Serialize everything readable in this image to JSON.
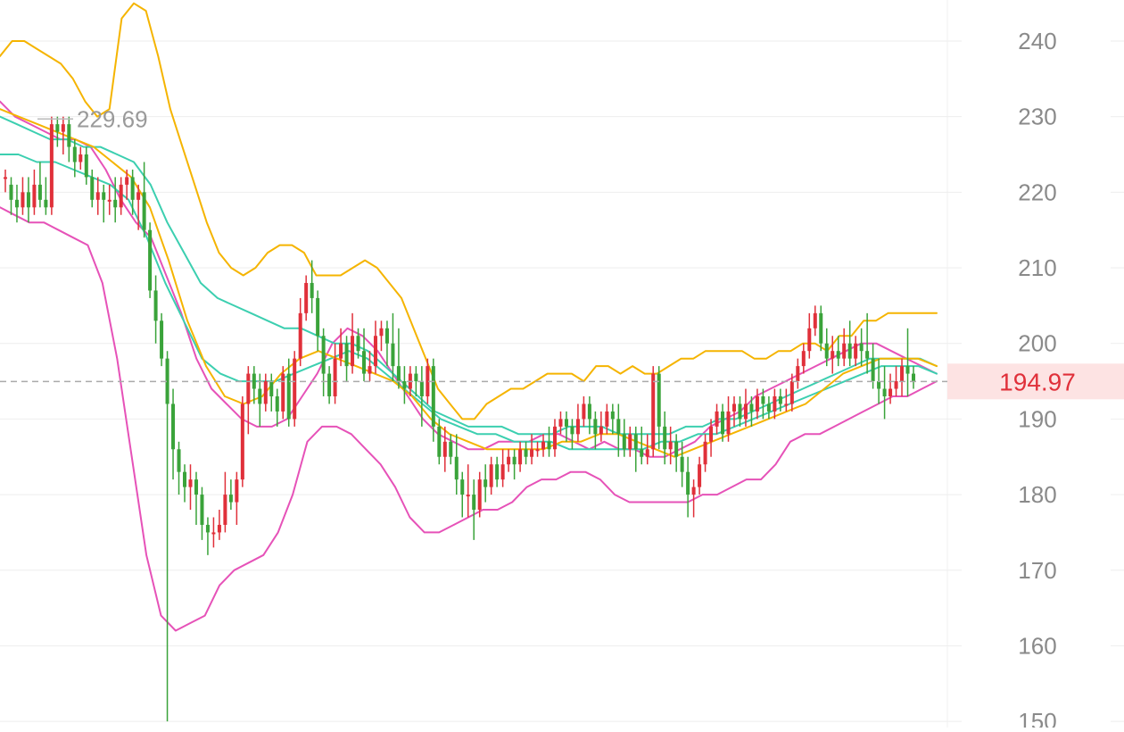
{
  "chart_data": {
    "type": "candlestick",
    "y_axis": {
      "ticks": [
        "240",
        "230",
        "220",
        "210",
        "200",
        "190",
        "180",
        "170",
        "160",
        "150"
      ],
      "range": [
        148,
        245
      ],
      "side": "right",
      "grid": true
    },
    "x_axis": {
      "labels": []
    },
    "current_price": {
      "value": 194.97,
      "label": "194.97"
    },
    "high_marker": {
      "value": 229.69,
      "label": "229.69"
    },
    "colors": {
      "up": "#e0303a",
      "down": "#3aa33a",
      "boll_outer": "#f5b400",
      "env": "#e652b8",
      "ma_teal": "#3ccfb0",
      "grid": "#eeeeee",
      "price_line": "#aaaaaa",
      "price_tag_bg": "#fde3e3",
      "price_tag_text": "#e0303a"
    },
    "candles": [
      [
        222,
        222,
        220,
        223
      ],
      [
        221,
        219,
        217,
        222
      ],
      [
        219,
        218,
        216,
        221
      ],
      [
        218,
        220,
        217,
        222
      ],
      [
        220,
        218,
        216,
        222
      ],
      [
        218,
        221,
        217,
        223
      ],
      [
        221,
        219,
        218,
        224
      ],
      [
        219,
        218,
        217,
        222
      ],
      [
        218,
        229,
        217,
        230
      ],
      [
        229,
        228,
        226,
        230
      ],
      [
        228,
        229,
        225,
        230
      ],
      [
        229,
        226,
        224,
        230
      ],
      [
        226,
        224,
        222,
        227
      ],
      [
        224,
        225,
        223,
        226
      ],
      [
        225,
        222,
        221,
        226
      ],
      [
        222,
        219,
        218,
        223
      ],
      [
        219,
        220,
        217,
        222
      ],
      [
        220,
        219,
        216,
        221
      ],
      [
        219,
        219,
        217,
        221
      ],
      [
        219,
        218,
        216,
        222
      ],
      [
        218,
        221,
        217,
        222
      ],
      [
        221,
        222,
        219,
        223
      ],
      [
        222,
        219,
        217,
        223
      ],
      [
        219,
        220,
        215,
        221
      ],
      [
        220,
        215,
        214,
        224
      ],
      [
        215,
        207,
        206,
        216
      ],
      [
        207,
        203,
        200,
        209
      ],
      [
        203,
        198,
        197,
        204
      ],
      [
        198,
        192,
        150,
        199
      ],
      [
        192,
        186,
        182,
        194
      ],
      [
        186,
        183,
        180,
        187
      ],
      [
        183,
        181,
        179,
        184
      ],
      [
        181,
        182,
        178,
        184
      ],
      [
        182,
        180,
        176,
        183
      ],
      [
        180,
        176,
        174,
        181
      ],
      [
        176,
        175,
        172,
        177
      ],
      [
        175,
        175,
        173,
        177
      ],
      [
        175,
        176,
        174,
        178
      ],
      [
        176,
        180,
        175,
        183
      ],
      [
        180,
        179,
        178,
        182
      ],
      [
        179,
        182,
        176,
        183
      ],
      [
        182,
        192,
        181,
        193
      ],
      [
        192,
        196,
        188,
        197
      ],
      [
        196,
        194,
        192,
        197
      ],
      [
        194,
        192,
        189,
        196
      ],
      [
        192,
        195,
        191,
        196
      ],
      [
        195,
        193,
        191,
        196
      ],
      [
        193,
        191,
        189,
        194
      ],
      [
        191,
        196,
        190,
        197
      ],
      [
        196,
        190,
        189,
        198
      ],
      [
        190,
        198,
        189,
        199
      ],
      [
        198,
        204,
        197,
        206
      ],
      [
        204,
        208,
        203,
        209
      ],
      [
        208,
        206,
        204,
        211
      ],
      [
        206,
        201,
        199,
        207
      ],
      [
        201,
        196,
        193,
        202
      ],
      [
        196,
        193,
        192,
        197
      ],
      [
        193,
        198,
        192,
        200
      ],
      [
        198,
        200,
        197,
        202
      ],
      [
        200,
        197,
        195,
        201
      ],
      [
        197,
        201,
        196,
        204
      ],
      [
        201,
        199,
        198,
        202
      ],
      [
        199,
        196,
        195,
        202
      ],
      [
        196,
        197,
        195,
        199
      ],
      [
        197,
        201,
        196,
        203
      ],
      [
        201,
        202,
        199,
        203
      ],
      [
        202,
        200,
        197,
        203
      ],
      [
        200,
        197,
        195,
        204
      ],
      [
        197,
        195,
        194,
        202
      ],
      [
        195,
        194,
        192,
        197
      ],
      [
        194,
        196,
        193,
        197
      ],
      [
        196,
        195,
        193,
        197
      ],
      [
        195,
        193,
        189,
        197
      ],
      [
        193,
        197,
        192,
        198
      ],
      [
        197,
        189,
        187,
        198
      ],
      [
        189,
        185,
        184,
        190
      ],
      [
        185,
        187,
        183,
        189
      ],
      [
        187,
        185,
        184,
        188
      ],
      [
        185,
        182,
        180,
        188
      ],
      [
        182,
        180,
        177,
        183
      ],
      [
        180,
        180,
        177,
        184
      ],
      [
        180,
        178,
        174,
        182
      ],
      [
        178,
        182,
        177,
        183
      ],
      [
        182,
        181,
        179,
        184
      ],
      [
        181,
        184,
        180,
        185
      ],
      [
        184,
        182,
        181,
        185
      ],
      [
        182,
        184,
        181,
        186
      ],
      [
        184,
        185,
        183,
        186
      ],
      [
        185,
        184,
        182,
        186
      ],
      [
        184,
        186,
        183,
        187
      ],
      [
        186,
        185,
        184,
        187
      ],
      [
        185,
        186,
        184,
        188
      ],
      [
        186,
        186,
        185,
        187
      ],
      [
        186,
        187,
        185,
        188
      ],
      [
        187,
        186,
        185,
        189
      ],
      [
        186,
        189,
        185,
        190
      ],
      [
        189,
        190,
        188,
        191
      ],
      [
        190,
        189,
        187,
        191
      ],
      [
        189,
        188,
        186,
        190
      ],
      [
        188,
        190,
        187,
        192
      ],
      [
        190,
        192,
        189,
        193
      ],
      [
        192,
        190,
        188,
        193
      ],
      [
        190,
        188,
        186,
        191
      ],
      [
        188,
        189,
        187,
        191
      ],
      [
        189,
        191,
        188,
        192
      ],
      [
        191,
        190,
        188,
        192
      ],
      [
        190,
        188,
        185,
        192
      ],
      [
        188,
        186,
        185,
        190
      ],
      [
        186,
        188,
        185,
        189
      ],
      [
        188,
        186,
        183,
        189
      ],
      [
        186,
        185,
        184,
        189
      ],
      [
        185,
        186,
        184,
        188
      ],
      [
        186,
        196,
        185,
        197
      ],
      [
        196,
        189,
        186,
        197
      ],
      [
        189,
        186,
        184,
        191
      ],
      [
        186,
        187,
        184,
        189
      ],
      [
        187,
        185,
        183,
        188
      ],
      [
        185,
        183,
        181,
        187
      ],
      [
        183,
        180,
        177,
        185
      ],
      [
        180,
        181,
        177,
        182
      ],
      [
        181,
        184,
        180,
        185
      ],
      [
        184,
        187,
        183,
        188
      ],
      [
        187,
        189,
        185,
        190
      ],
      [
        189,
        191,
        188,
        192
      ],
      [
        191,
        188,
        187,
        192
      ],
      [
        188,
        191,
        187,
        193
      ],
      [
        191,
        192,
        189,
        193
      ],
      [
        192,
        190,
        189,
        193
      ],
      [
        190,
        192,
        189,
        194
      ],
      [
        192,
        191,
        189,
        193
      ],
      [
        191,
        193,
        190,
        194
      ],
      [
        193,
        192,
        190,
        194
      ],
      [
        192,
        191,
        190,
        193
      ],
      [
        191,
        193,
        190,
        194
      ],
      [
        193,
        192,
        191,
        194
      ],
      [
        192,
        192,
        191,
        194
      ],
      [
        192,
        195,
        191,
        196
      ],
      [
        195,
        197,
        194,
        198
      ],
      [
        197,
        199,
        196,
        200
      ],
      [
        199,
        202,
        198,
        204
      ],
      [
        202,
        204,
        201,
        205
      ],
      [
        204,
        200,
        199,
        205
      ],
      [
        200,
        198,
        197,
        202
      ],
      [
        198,
        199,
        196,
        201
      ],
      [
        199,
        198,
        197,
        201
      ],
      [
        198,
        200,
        197,
        202
      ],
      [
        200,
        198,
        197,
        203
      ],
      [
        198,
        200,
        197,
        201
      ],
      [
        200,
        199,
        197,
        202
      ],
      [
        199,
        198,
        196,
        204
      ],
      [
        198,
        195,
        194,
        200
      ],
      [
        195,
        194,
        192,
        198
      ],
      [
        194,
        193,
        190,
        197
      ],
      [
        193,
        194,
        192,
        196
      ],
      [
        194,
        195,
        193,
        197
      ],
      [
        195,
        197,
        193,
        198
      ],
      [
        197,
        196,
        193,
        202
      ],
      [
        196,
        195,
        194,
        197
      ]
    ],
    "series": [
      {
        "color": "#f5b400",
        "values": [
          238,
          240,
          240,
          239,
          238,
          237,
          235,
          232,
          230,
          231,
          243,
          245,
          244,
          238,
          231,
          226,
          221,
          216,
          212,
          210,
          209,
          210,
          212,
          213,
          213,
          212,
          209,
          209,
          209,
          210,
          211,
          210,
          208,
          206,
          202,
          198,
          194,
          192,
          190,
          190,
          192,
          193,
          194,
          194,
          195,
          196,
          196,
          196,
          195,
          197,
          197,
          196,
          197,
          196,
          196,
          197,
          198,
          198,
          199,
          199,
          199,
          199,
          198,
          198,
          199,
          199,
          200,
          200,
          199,
          201,
          201,
          203,
          203,
          204,
          204,
          204,
          204,
          204
        ]
      },
      {
        "color": "#e652b8",
        "values": [
          218,
          217,
          216,
          216,
          215,
          214,
          213,
          208,
          198,
          185,
          172,
          164,
          162,
          163,
          164,
          168,
          170,
          171,
          172,
          175,
          180,
          187,
          189,
          189,
          188,
          186,
          184,
          181,
          177,
          175,
          175,
          176,
          177,
          178,
          178,
          179,
          181,
          182,
          182,
          183,
          183,
          182,
          180,
          179,
          179,
          179,
          179,
          179,
          180,
          180,
          181,
          182,
          182,
          184,
          187,
          188,
          188,
          189,
          190,
          191,
          192,
          193,
          193,
          194,
          195
        ]
      },
      {
        "color": "#e652b8",
        "values": [
          232,
          230,
          229,
          228,
          227,
          227,
          226,
          223,
          219,
          216,
          214,
          209,
          204,
          198,
          194,
          192,
          190,
          189,
          189,
          190,
          193,
          196,
          200,
          202,
          201,
          199,
          196,
          193,
          190,
          188,
          187,
          186,
          186,
          187,
          187,
          187,
          188,
          188,
          187,
          186,
          187,
          186,
          186,
          185,
          185,
          186,
          187,
          189,
          190,
          191,
          193,
          194,
          195,
          196,
          197,
          198,
          199,
          200,
          200,
          199,
          198,
          197,
          196
        ]
      },
      {
        "color": "#3ccfb0",
        "values": [
          230,
          229,
          228,
          227,
          227,
          226,
          226,
          225,
          224,
          221,
          216,
          212,
          208,
          206,
          205,
          204,
          203,
          202,
          202,
          201,
          200,
          200,
          199,
          197,
          195,
          193,
          191,
          190,
          189,
          189,
          189,
          188,
          188,
          188,
          189,
          189,
          189,
          188,
          188,
          188,
          188,
          189,
          189,
          190,
          190,
          191,
          192,
          193,
          194,
          195,
          196,
          197,
          198,
          198,
          198,
          198,
          197
        ]
      },
      {
        "color": "#3ccfb0",
        "values": [
          225,
          225,
          224,
          224,
          223,
          222,
          221,
          219,
          214,
          208,
          203,
          198,
          196,
          195,
          195,
          195,
          196,
          197,
          198,
          199,
          198,
          196,
          194,
          192,
          190,
          189,
          188,
          188,
          187,
          187,
          187,
          186,
          186,
          186,
          186,
          186,
          187,
          187,
          188,
          188,
          189,
          190,
          191,
          192,
          193,
          194,
          195,
          196,
          197,
          197,
          197,
          196
        ]
      },
      {
        "color": "#f5b400",
        "values": [
          231,
          230,
          229,
          228,
          227,
          226,
          224,
          222,
          218,
          211,
          203,
          197,
          193,
          192,
          193,
          196,
          198,
          199,
          198,
          197,
          196,
          195,
          193,
          190,
          188,
          187,
          186,
          186,
          186,
          186,
          187,
          187,
          188,
          188,
          187,
          186,
          185,
          186,
          187,
          188,
          189,
          190,
          191,
          192,
          194,
          196,
          197,
          198,
          198,
          198,
          197
        ]
      }
    ]
  }
}
